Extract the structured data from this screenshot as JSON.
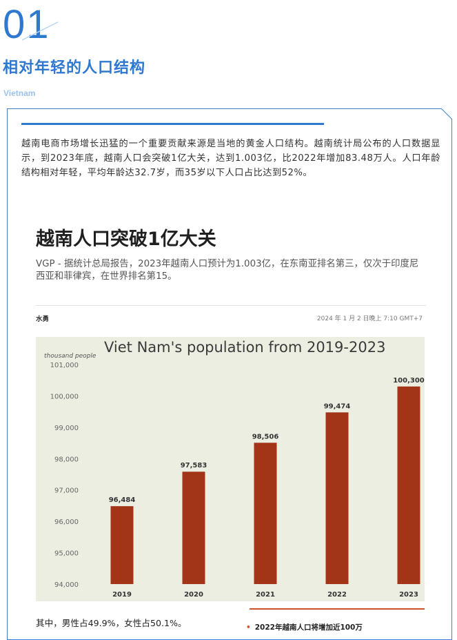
{
  "section": {
    "number": "01",
    "title": "相对年轻的人口结构",
    "subtitle": "Vietnam"
  },
  "intro": "越南电商市场增长迅猛的一个重要贡献来源是当地的黄金人口结构。越南统计局公布的人口数据显示，到2023年底，越南人口会突破1亿大关，达到1.003亿，比2022年增加83.48万人。人口年龄结构相对年轻，平均年龄达32.7岁，而35岁以下人口占比达到52%。",
  "article": {
    "title": "越南人口突破1亿大关",
    "lead": "VGP - 据统计总局报告，2023年越南人口预计为1.003亿，在东南亚排名第三，仅次于印度尼西亚和菲律宾，在世界排名第15。",
    "author": "水勇",
    "date": "2024 年 1 月 2 日晚上 7:10 GMT+7"
  },
  "chart_data": {
    "type": "bar",
    "title": "Viet Nam's population from 2019-2023",
    "ylabel": "thousand people",
    "categories": [
      "2019",
      "2020",
      "2021",
      "2022",
      "2023"
    ],
    "values": [
      96484,
      97583,
      98506,
      99474,
      100300
    ],
    "value_labels": [
      "96,484",
      "97,583",
      "98,506",
      "99,474",
      "100,300"
    ],
    "ylim": [
      94000,
      101000
    ],
    "yticks": [
      94000,
      95000,
      96000,
      97000,
      98000,
      99000,
      100000,
      101000
    ],
    "ytick_labels": [
      "94,000",
      "95,000",
      "96,000",
      "97,000",
      "98,000",
      "99,000",
      "100,000",
      "101,000"
    ],
    "grid": false,
    "colors": {
      "bar": "#a23517",
      "background": "#edeee2"
    }
  },
  "caption": "其中，男性占49.9%，女性占50.1%。",
  "sidebar": {
    "item": "2022年越南人口将增加近100万"
  },
  "colors": {
    "accent": "#2f78cf",
    "light_accent": "#9cc2ea",
    "side_accent": "#c9522b"
  }
}
